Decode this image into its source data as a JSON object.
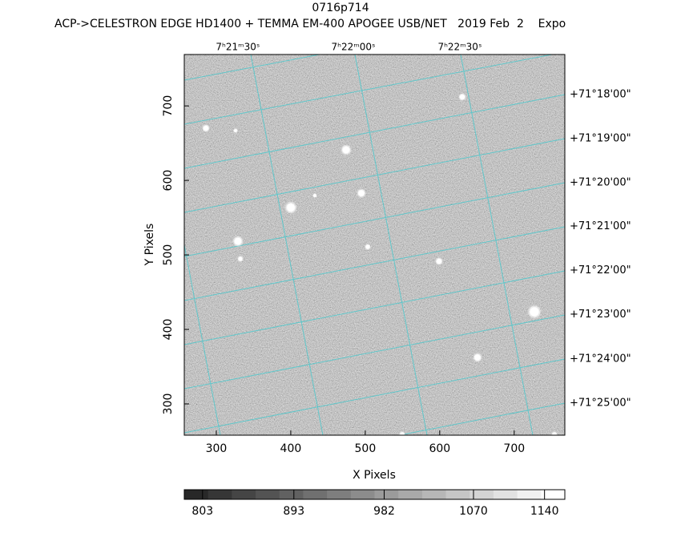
{
  "chart_data": {
    "type": "image",
    "title": "0716p714",
    "subtitle": "ACP->CELESTRON EDGE HD1400 + TEMMA EM-400 APOGEE USB/NET   2019 Feb  2    Expo",
    "xlabel": "X Pixels",
    "ylabel": "Y Pixels",
    "xlim": [
      257,
      768
    ],
    "ylim": [
      258,
      769
    ],
    "xticks": [
      300,
      400,
      500,
      600,
      700
    ],
    "yticks": [
      300,
      400,
      500,
      600,
      700
    ],
    "top_ticks": [
      {
        "value": 329,
        "label": "7ʰ21ᵐ30ˢ"
      },
      {
        "value": 484,
        "label": "7ʰ22ᵐ00ˢ"
      },
      {
        "value": 627,
        "label": "7ʰ22ᵐ30ˢ"
      }
    ],
    "right_ticks": [
      {
        "value": 715,
        "label": "+71°18'00\""
      },
      {
        "value": 656,
        "label": "+71°19'00\""
      },
      {
        "value": 597,
        "label": "+71°20'00\""
      },
      {
        "value": 538,
        "label": "+71°21'00\""
      },
      {
        "value": 479,
        "label": "+71°22'00\""
      },
      {
        "value": 420,
        "label": "+71°23'00\""
      },
      {
        "value": 360,
        "label": "+71°24'00\""
      },
      {
        "value": 301,
        "label": "+71°25'00\""
      }
    ],
    "colorbar_lim": [
      785,
      1160
    ],
    "colorbar_ticks": [
      803,
      893,
      982,
      1070,
      1140
    ]
  }
}
